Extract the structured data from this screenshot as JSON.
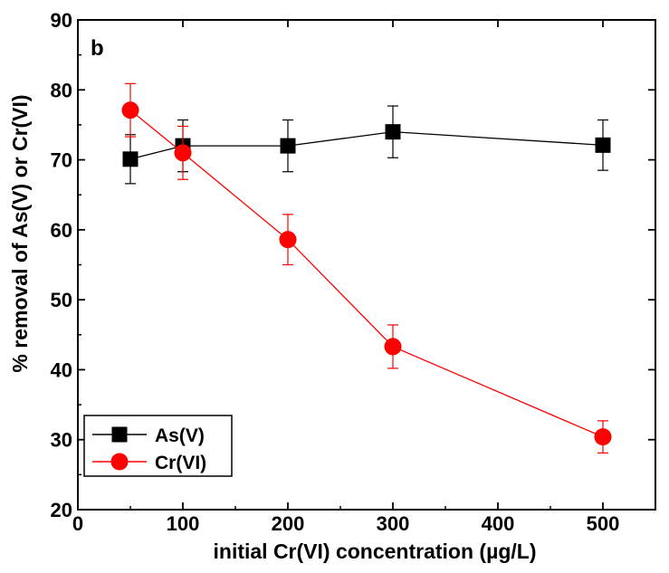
{
  "chart_data": {
    "type": "line",
    "panel_label": "b",
    "xlabel": "initial Cr(VI) concentration (µg/L)",
    "ylabel": "% removal of As(V) or Cr(VI)",
    "xlim": [
      0,
      550
    ],
    "ylim": [
      20,
      90
    ],
    "x_ticks": [
      0,
      100,
      200,
      300,
      400,
      500
    ],
    "y_ticks": [
      20,
      30,
      40,
      50,
      60,
      70,
      80,
      90
    ],
    "x_tick_labels": [
      "0",
      "100",
      "200",
      "300",
      "400",
      "500"
    ],
    "y_tick_labels": [
      "20",
      "30",
      "40",
      "50",
      "60",
      "70",
      "80",
      "90"
    ],
    "grid": false,
    "legend_position": "bottom-left",
    "series": [
      {
        "name": "As(V)",
        "marker": "square",
        "color": "#000000",
        "x": [
          50,
          100,
          200,
          300,
          500
        ],
        "y": [
          70.1,
          72.0,
          72.0,
          74.0,
          72.1
        ],
        "error": [
          3.5,
          3.7,
          3.7,
          3.7,
          3.6
        ]
      },
      {
        "name": "Cr(VI)",
        "marker": "circle",
        "color": "#ff0000",
        "x": [
          50,
          100,
          200,
          300,
          500
        ],
        "y": [
          77.1,
          71.0,
          58.6,
          43.3,
          30.4
        ],
        "error": [
          3.8,
          3.8,
          3.6,
          3.1,
          2.3
        ]
      }
    ]
  }
}
